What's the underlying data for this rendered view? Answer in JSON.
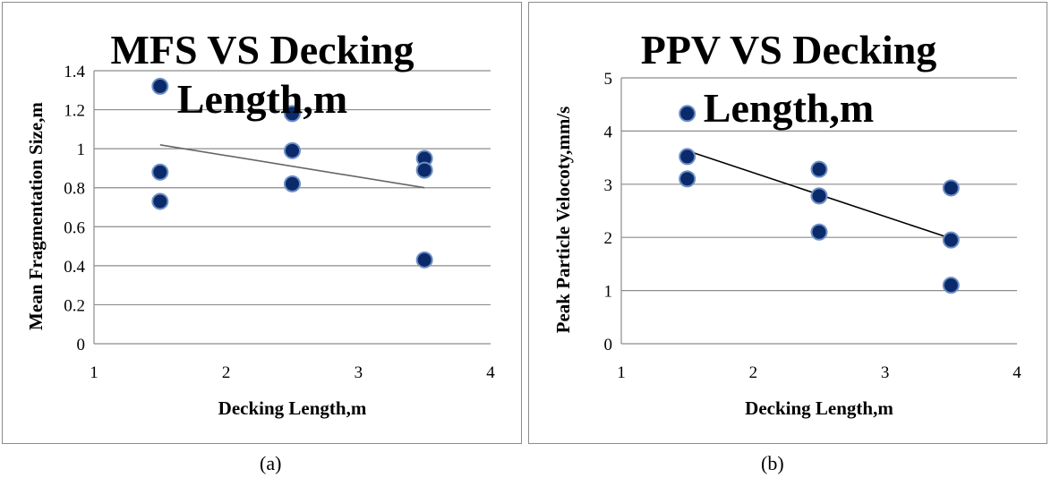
{
  "captions": [
    "(a)",
    "(b)"
  ],
  "chart_data": [
    {
      "type": "scatter",
      "title_lines": [
        "MFS VS Decking",
        "Length,m"
      ],
      "xlabel": "Decking Length,m",
      "ylabel": "Mean Fragmentation Size,m",
      "xlim": [
        1,
        4
      ],
      "ylim": [
        0,
        1.4
      ],
      "x_ticks": [
        "1",
        "2",
        "3",
        "4"
      ],
      "y_ticks": [
        "0",
        "0.2",
        "0.4",
        "0.6",
        "0.8",
        "1",
        "1.2",
        "1.4"
      ],
      "grid": true,
      "points": [
        {
          "x": 1.5,
          "y": 1.32
        },
        {
          "x": 1.5,
          "y": 0.88
        },
        {
          "x": 1.5,
          "y": 0.73
        },
        {
          "x": 2.5,
          "y": 1.18
        },
        {
          "x": 2.5,
          "y": 0.99
        },
        {
          "x": 2.5,
          "y": 0.82
        },
        {
          "x": 3.5,
          "y": 0.95
        },
        {
          "x": 3.5,
          "y": 0.89
        },
        {
          "x": 3.5,
          "y": 0.43
        }
      ],
      "trendline": {
        "x": [
          1.5,
          3.5
        ],
        "y": [
          1.02,
          0.8
        ]
      },
      "colors": {
        "marker": "#0b2a6b",
        "marker_edge": "#6d8fc4",
        "trend": "#666666"
      }
    },
    {
      "type": "scatter",
      "title_lines": [
        "PPV VS Decking",
        "Length,m"
      ],
      "xlabel": "Decking Length,m",
      "ylabel": "Peak Particle Velocoty,mm/s",
      "xlim": [
        1,
        4
      ],
      "ylim": [
        0,
        5
      ],
      "x_ticks": [
        "1",
        "2",
        "3",
        "4"
      ],
      "y_ticks": [
        "0",
        "1",
        "2",
        "3",
        "4",
        "5"
      ],
      "grid": true,
      "points": [
        {
          "x": 1.5,
          "y": 4.33
        },
        {
          "x": 1.5,
          "y": 3.52
        },
        {
          "x": 1.5,
          "y": 3.1
        },
        {
          "x": 2.5,
          "y": 3.28
        },
        {
          "x": 2.5,
          "y": 2.78
        },
        {
          "x": 2.5,
          "y": 2.1
        },
        {
          "x": 3.5,
          "y": 2.93
        },
        {
          "x": 3.5,
          "y": 1.95
        },
        {
          "x": 3.5,
          "y": 1.1
        }
      ],
      "trendline": {
        "x": [
          1.5,
          3.5
        ],
        "y": [
          3.63,
          1.98
        ]
      },
      "colors": {
        "marker": "#0b2a6b",
        "marker_edge": "#6d8fc4",
        "trend": "#000000"
      }
    }
  ]
}
